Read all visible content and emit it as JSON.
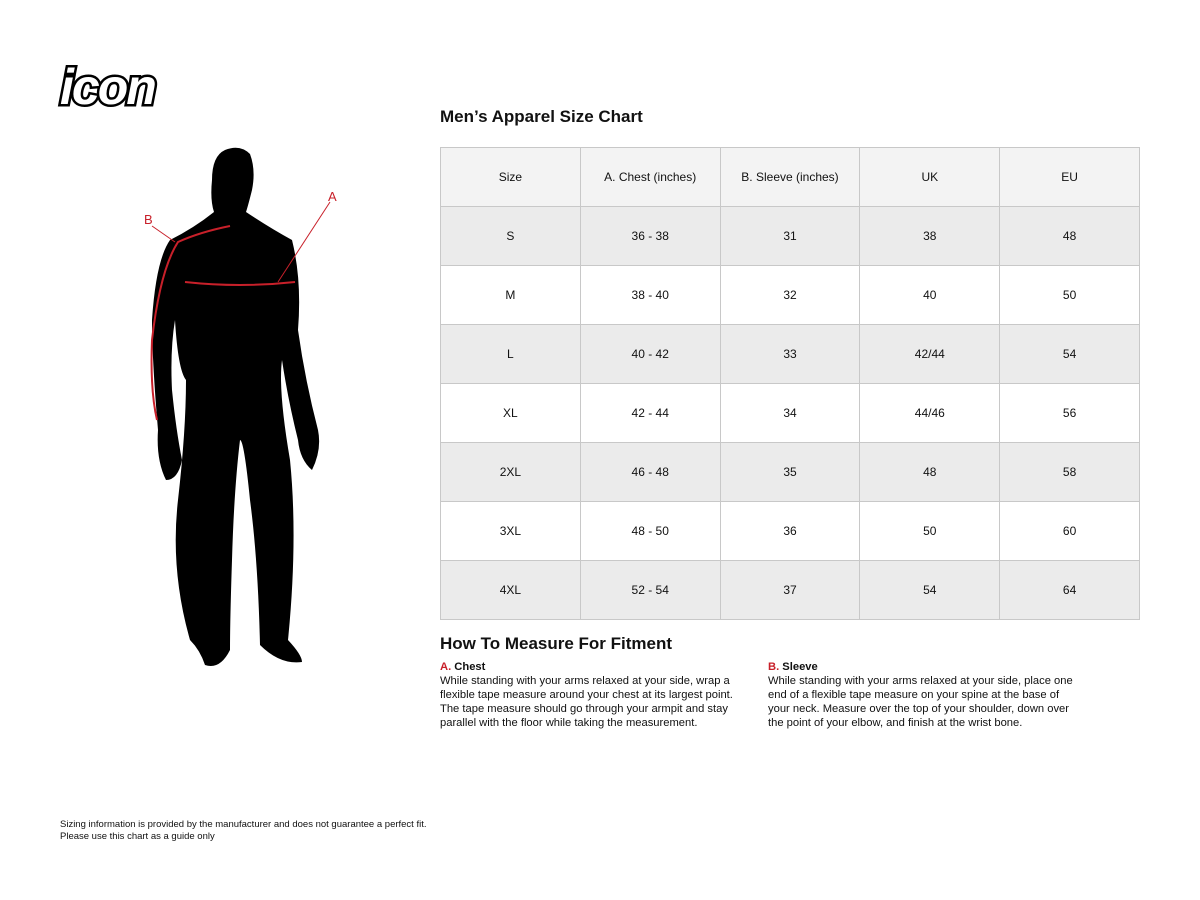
{
  "brand": {
    "logo_text": "icon"
  },
  "figure": {
    "label_a": "A",
    "label_b": "B",
    "accent": "#c8202a"
  },
  "title": "Men’s Apparel Size Chart",
  "table": {
    "headers": [
      "Size",
      "A. Chest (inches)",
      "B. Sleeve (inches)",
      "UK",
      "EU"
    ],
    "rows": [
      [
        "S",
        "36 - 38",
        "31",
        "38",
        "48"
      ],
      [
        "M",
        "38 - 40",
        "32",
        "40",
        "50"
      ],
      [
        "L",
        "40 - 42",
        "33",
        "42/44",
        "54"
      ],
      [
        "XL",
        "42 - 44",
        "34",
        "44/46",
        "56"
      ],
      [
        "2XL",
        "46 - 48",
        "35",
        "48",
        "58"
      ],
      [
        "3XL",
        "48 - 50",
        "36",
        "50",
        "60"
      ],
      [
        "4XL",
        "52 - 54",
        "37",
        "54",
        "64"
      ]
    ]
  },
  "how": {
    "title": "How To Measure For Fitment",
    "chest": {
      "letter": "A.",
      "label": "Chest",
      "text": "While standing with your arms relaxed at your side, wrap a flexible tape measure around your chest at its largest point. The tape measure should go through your armpit and stay parallel with the floor while taking the measurement."
    },
    "sleeve": {
      "letter": "B.",
      "label": "Sleeve",
      "text": "While standing with your arms relaxed at your side, place one end of a flexible tape measure on your spine at the base of your neck. Measure over the top of your shoulder, down over the point of your elbow, and finish at the wrist bone."
    }
  },
  "disclaimer": {
    "line1": "Sizing information is provided by the manufacturer and does not guarantee a perfect fit.",
    "line2": "Please use this chart as a guide only"
  }
}
